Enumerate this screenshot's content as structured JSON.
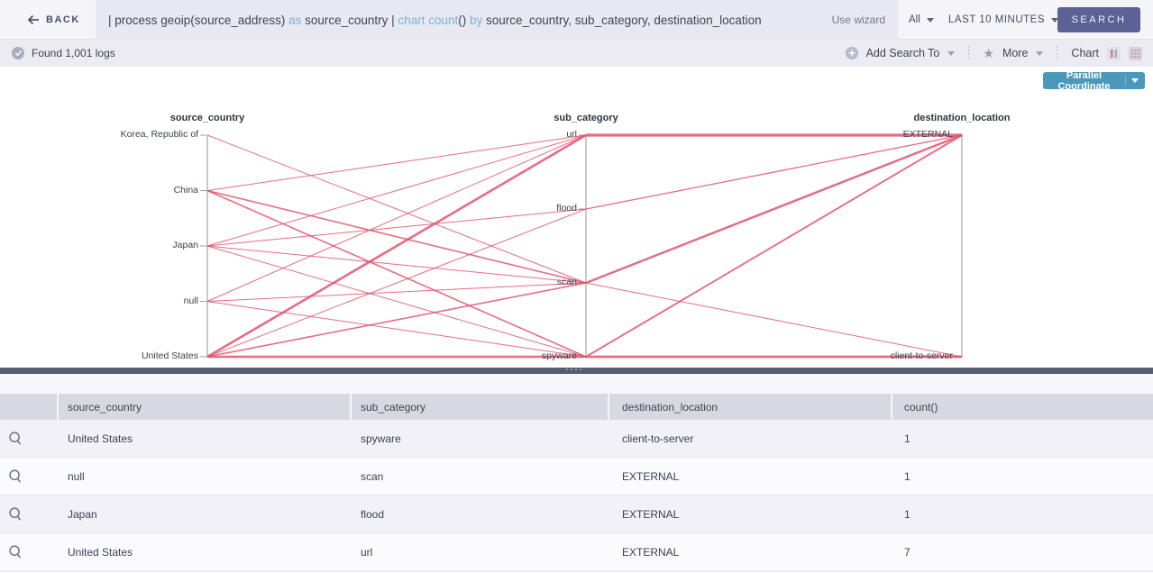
{
  "topbar": {
    "back": "BACK",
    "query_tokens": [
      {
        "t": "| process geoip(source_address) ",
        "c": "p"
      },
      {
        "t": "as",
        "c": "k"
      },
      {
        "t": " source_country | ",
        "c": "p"
      },
      {
        "t": "chart count",
        "c": "k"
      },
      {
        "t": "() ",
        "c": "p"
      },
      {
        "t": "by",
        "c": "k"
      },
      {
        "t": " source_country, sub_category, destination_location",
        "c": "p"
      }
    ],
    "use_wizard": "Use wizard",
    "scope": "All",
    "time_range": "LAST 10 MINUTES",
    "search": "SEARCH"
  },
  "statusbar": {
    "found": "Found 1,001 logs",
    "add_search_to": "Add Search To",
    "more": "More",
    "chart": "Chart"
  },
  "chart": {
    "view_selector": "Parallel Coordinate"
  },
  "chart_data": {
    "type": "parallel-coordinates",
    "axes": [
      {
        "name": "source_country",
        "values": [
          "Korea, Republic of",
          "China",
          "Japan",
          "null",
          "United States"
        ]
      },
      {
        "name": "sub_category",
        "values": [
          "url",
          "flood",
          "scan",
          "spyware"
        ]
      },
      {
        "name": "destination_location",
        "values": [
          "EXTERNAL",
          "client-to-server"
        ]
      }
    ],
    "rows": [
      {
        "source_country": "Korea, Republic of",
        "sub_category": "scan",
        "destination_location": "EXTERNAL",
        "width": 1
      },
      {
        "source_country": "China",
        "sub_category": "url",
        "destination_location": "EXTERNAL",
        "width": 1
      },
      {
        "source_country": "China",
        "sub_category": "scan",
        "destination_location": "EXTERNAL",
        "width": 1.6
      },
      {
        "source_country": "China",
        "sub_category": "spyware",
        "destination_location": "EXTERNAL",
        "width": 1.6
      },
      {
        "source_country": "Japan",
        "sub_category": "url",
        "destination_location": "EXTERNAL",
        "width": 1
      },
      {
        "source_country": "Japan",
        "sub_category": "flood",
        "destination_location": "EXTERNAL",
        "width": 1
      },
      {
        "source_country": "Japan",
        "sub_category": "scan",
        "destination_location": "client-to-server",
        "width": 1
      },
      {
        "source_country": "Japan",
        "sub_category": "spyware",
        "destination_location": "EXTERNAL",
        "width": 1
      },
      {
        "source_country": "null",
        "sub_category": "url",
        "destination_location": "EXTERNAL",
        "width": 1
      },
      {
        "source_country": "null",
        "sub_category": "scan",
        "destination_location": "EXTERNAL",
        "width": 1
      },
      {
        "source_country": "null",
        "sub_category": "spyware",
        "destination_location": "client-to-server",
        "width": 1
      },
      {
        "source_country": "United States",
        "sub_category": "url",
        "destination_location": "EXTERNAL",
        "width": 2.6
      },
      {
        "source_country": "United States",
        "sub_category": "flood",
        "destination_location": "EXTERNAL",
        "width": 1
      },
      {
        "source_country": "United States",
        "sub_category": "scan",
        "destination_location": "EXTERNAL",
        "width": 1.6
      },
      {
        "source_country": "United States",
        "sub_category": "spyware",
        "destination_location": "client-to-server",
        "width": 2.4
      }
    ]
  },
  "table": {
    "columns": [
      "source_country",
      "sub_category",
      "destination_location",
      "count()"
    ],
    "rows": [
      {
        "source_country": "United States",
        "sub_category": "spyware",
        "destination_location": "client-to-server",
        "count": "1"
      },
      {
        "source_country": "null",
        "sub_category": "scan",
        "destination_location": "EXTERNAL",
        "count": "1"
      },
      {
        "source_country": "Japan",
        "sub_category": "flood",
        "destination_location": "EXTERNAL",
        "count": "1"
      },
      {
        "source_country": "United States",
        "sub_category": "url",
        "destination_location": "EXTERNAL",
        "count": "7"
      }
    ]
  },
  "icons": {
    "star": "★"
  },
  "colors": {
    "line": "#e0536f",
    "axis": "#c9c9cd",
    "view_button": "#4a98ba",
    "search_button": "#5d6295"
  }
}
